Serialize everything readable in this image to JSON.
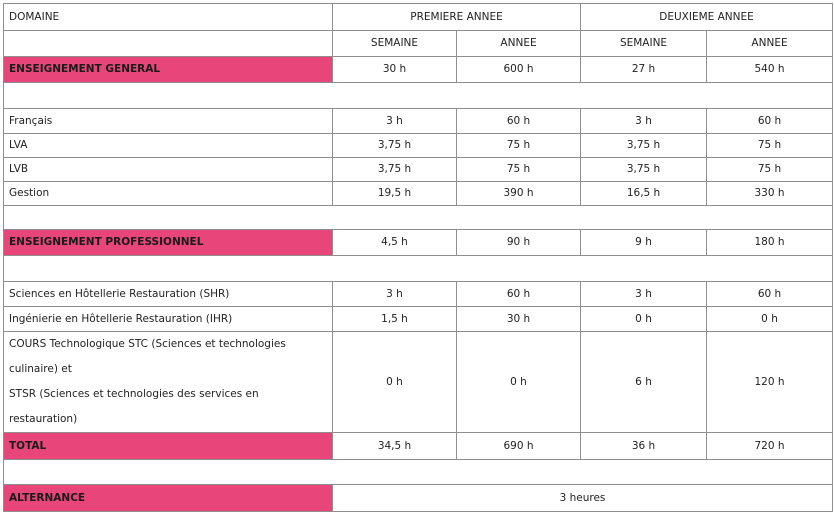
{
  "header": {
    "domaine": "DOMAINE",
    "premiere": "PREMIERE ANNEE",
    "deuxieme": "DEUXIEME ANNEE",
    "semaine": "SEMAINE",
    "annee": "ANNEE"
  },
  "general": {
    "label": "ENSEIGNEMENT GENERAL",
    "values": [
      "30 h",
      "600 h",
      "27 h",
      "540 h"
    ],
    "rows": [
      {
        "label": "Français",
        "values": [
          "3 h",
          "60 h",
          "3 h",
          "60 h"
        ]
      },
      {
        "label": "LVA",
        "values": [
          "3,75 h",
          "75 h",
          "3,75 h",
          "75 h"
        ]
      },
      {
        "label": "LVB",
        "values": [
          "3,75 h",
          "75 h",
          "3,75 h",
          "75 h"
        ]
      },
      {
        "label": "Gestion",
        "values": [
          "19,5 h",
          "390 h",
          "16,5 h",
          "330 h"
        ]
      }
    ]
  },
  "pro": {
    "label": "ENSEIGNEMENT PROFESSIONNEL",
    "values": [
      "4,5 h",
      "90 h",
      "9 h",
      "180 h"
    ],
    "rows": [
      {
        "label": "Sciences en Hôtellerie Restauration (SHR)",
        "values": [
          "3 h",
          "60 h",
          "3 h",
          "60 h"
        ]
      },
      {
        "label": "Ingénierie en Hôtellerie Restauration (IHR)",
        "values": [
          "1,5 h",
          "30 h",
          "0 h",
          "0 h"
        ]
      },
      {
        "label_line1": "COURS Technologique STC (Sciences et technologies culinaire) et",
        "label_line2": "STSR (Sciences et technologies des services en restauration)",
        "values": [
          "0 h",
          "0 h",
          "6 h",
          "120 h"
        ]
      }
    ]
  },
  "total": {
    "label": "TOTAL",
    "values": [
      "34,5 h",
      "690 h",
      "36 h",
      "720 h"
    ]
  },
  "alternance": {
    "label": "ALTERNANCE",
    "value": "3 heures"
  }
}
